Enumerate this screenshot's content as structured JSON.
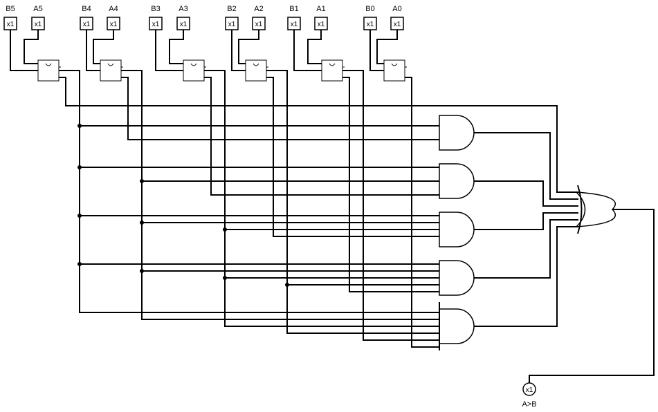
{
  "inputs": [
    {
      "label": "B5",
      "value": "x1"
    },
    {
      "label": "A5",
      "value": "x1"
    },
    {
      "label": "B4",
      "value": "x1"
    },
    {
      "label": "A4",
      "value": "x1"
    },
    {
      "label": "B3",
      "value": "x1"
    },
    {
      "label": "A3",
      "value": "x1"
    },
    {
      "label": "B2",
      "value": "x1"
    },
    {
      "label": "A2",
      "value": "x1"
    },
    {
      "label": "B1",
      "value": "x1"
    },
    {
      "label": "A1",
      "value": "x1"
    },
    {
      "label": "B0",
      "value": "x1"
    },
    {
      "label": "A0",
      "value": "x1"
    }
  ],
  "output": {
    "label": "A>B",
    "value": "x1"
  }
}
